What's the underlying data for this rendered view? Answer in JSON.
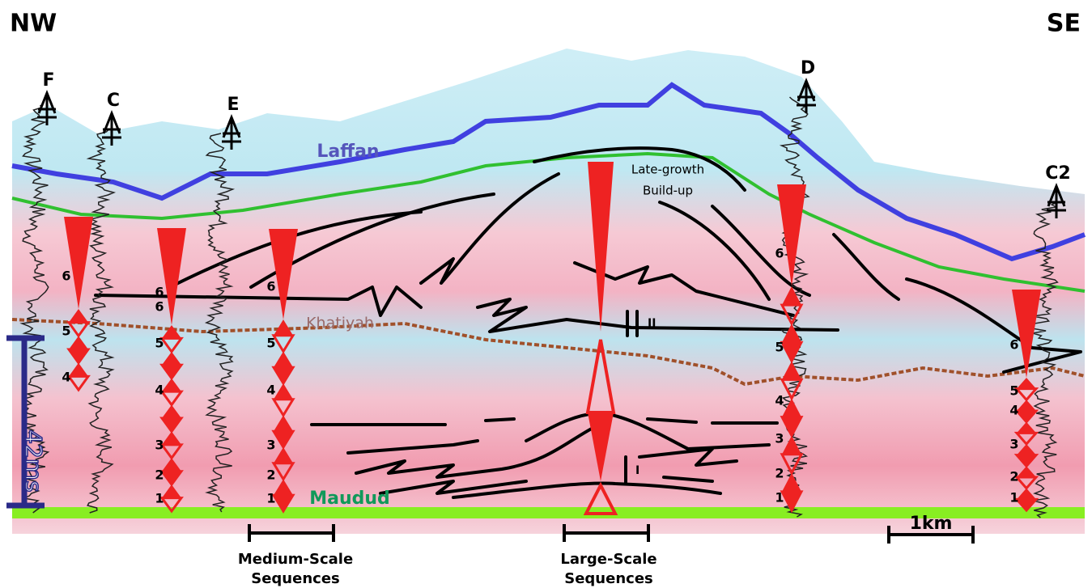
{
  "orientation": {
    "left": "NW",
    "right": "SE"
  },
  "wells": [
    {
      "label": "F"
    },
    {
      "label": "C"
    },
    {
      "label": "E"
    },
    {
      "label": "D"
    },
    {
      "label": "C2"
    }
  ],
  "horizons": [
    {
      "label": "Laffan"
    },
    {
      "label": "Khatiyah"
    },
    {
      "label": "Maudud"
    }
  ],
  "build_up_note": [
    "Late-growth",
    "Build-up"
  ],
  "sequence_orders": [
    "I",
    "II"
  ],
  "sequence_columns": [
    {
      "numbers": [
        6,
        5,
        4
      ]
    },
    {
      "numbers": [
        6,
        6,
        5,
        4,
        3,
        2,
        1
      ]
    },
    {
      "numbers": [
        6,
        5,
        4,
        3,
        2,
        1
      ]
    },
    {
      "numbers": [
        6,
        5,
        4,
        3,
        2,
        1
      ]
    },
    {
      "numbers": [
        6,
        5,
        4,
        3,
        2,
        1
      ]
    }
  ],
  "scale_bars": {
    "vertical": "42ms",
    "horizontal": "1km"
  },
  "sequence_scales": {
    "medium": [
      "Medium-Scale",
      "Sequences"
    ],
    "large": [
      "Large-Scale",
      "Sequences"
    ]
  }
}
